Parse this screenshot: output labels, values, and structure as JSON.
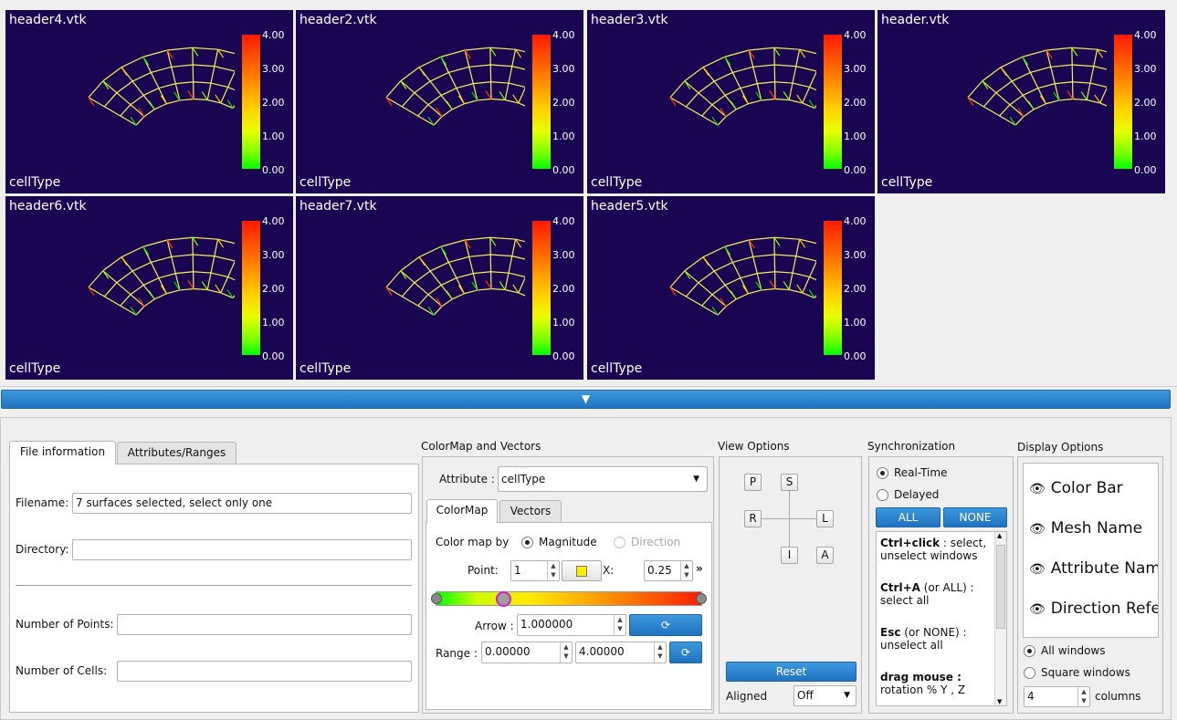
{
  "views": [
    {
      "title": "header4.vtk",
      "attribute": "cellType"
    },
    {
      "title": "header2.vtk",
      "attribute": "cellType"
    },
    {
      "title": "header3.vtk",
      "attribute": "cellType"
    },
    {
      "title": "header.vtk",
      "attribute": "cellType"
    },
    {
      "title": "header6.vtk",
      "attribute": "cellType"
    },
    {
      "title": "header7.vtk",
      "attribute": "cellType"
    },
    {
      "title": "header5.vtk",
      "attribute": "cellType"
    }
  ],
  "colorbar_ticks": [
    "4.00",
    "3.00",
    "2.00",
    "1.00",
    "0.00"
  ],
  "splitter": {
    "arrow": "▼"
  },
  "file_info": {
    "tabs": [
      "File information",
      "Attributes/Ranges"
    ],
    "filename_label": "Filename:",
    "filename_value": "7 surfaces selected, select only one",
    "directory_label": "Directory:",
    "directory_value": "",
    "points_label": "Number of Points:",
    "points_value": "",
    "cells_label": "Number of Cells:",
    "cells_value": ""
  },
  "colormap": {
    "group_title": "ColorMap and Vectors",
    "attribute_label": "Attribute :",
    "attribute_value": "cellType",
    "tabs": [
      "ColorMap",
      "Vectors"
    ],
    "map_by_label": "Color map by",
    "magnitude_label": "Magnitude",
    "direction_label": "Direction",
    "point_label": "Point:",
    "point_value": "1",
    "point_color": "#ffee00",
    "x_label": "X:",
    "x_value": "0.25",
    "more_label": "»",
    "arrow_label": "Arrow :",
    "arrow_value": "1.000000",
    "range_label": "Range :",
    "range_min": "0.00000",
    "range_max": "4.00000",
    "reset_glyph": "⟳",
    "slider_position": 0.25
  },
  "view_options": {
    "title": "View Options",
    "keys": {
      "p": "P",
      "s": "S",
      "r": "R",
      "l": "L",
      "i": "I",
      "a": "A"
    },
    "reset_label": "Reset",
    "aligned_label": "Aligned",
    "aligned_value": "Off"
  },
  "sync": {
    "title": "Synchronization",
    "realtime_label": "Real-Time",
    "delayed_label": "Delayed",
    "all_label": "ALL",
    "none_label": "NONE",
    "help": [
      {
        "bold": "Ctrl+click",
        "text": " : select,",
        "line2": "unselect windows"
      },
      {
        "bold": "Ctrl+A",
        "text": " (or ALL) :",
        "line2": "select all"
      },
      {
        "bold": "Esc",
        "text": " (or NONE) :",
        "line2": "unselect all"
      },
      {
        "bold": "drag mouse :",
        "text": "",
        "line2": "rotation % Y , Z"
      }
    ]
  },
  "display": {
    "title": "Display Options",
    "items": [
      "Color Bar",
      "Mesh Name",
      "Attribute Nam",
      "Direction Refe"
    ],
    "all_windows_label": "All windows",
    "square_windows_label": "Square windows",
    "columns_value": "4",
    "columns_label": "columns"
  }
}
